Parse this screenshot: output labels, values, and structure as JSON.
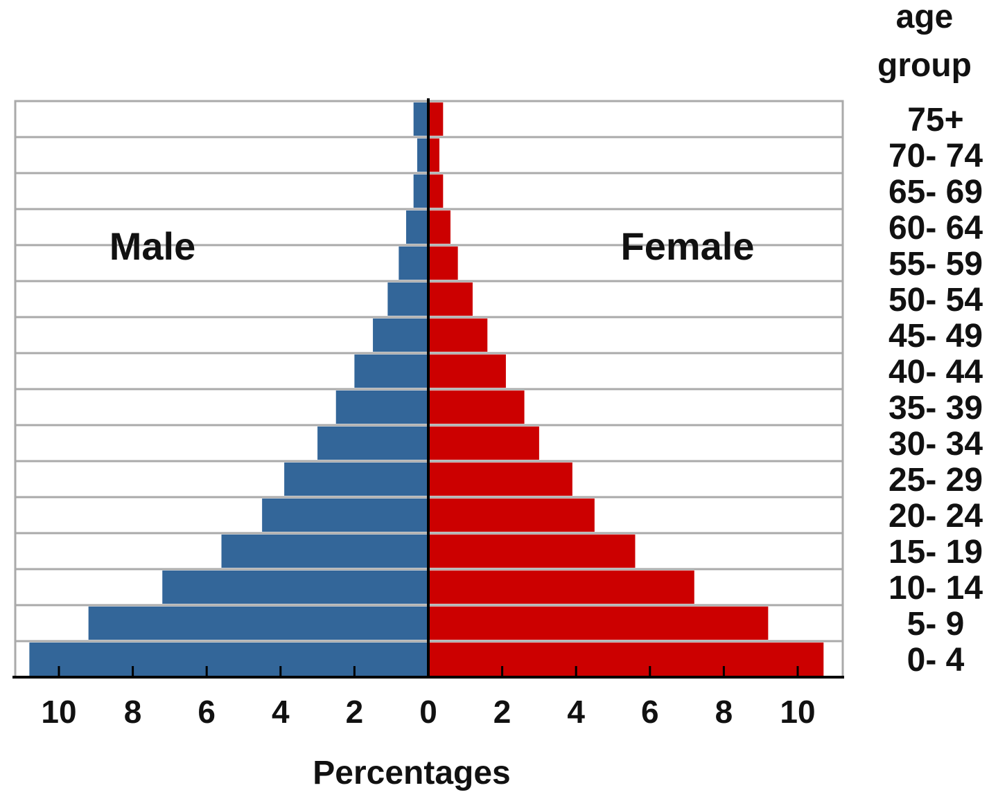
{
  "chart_data": {
    "type": "bar",
    "orientation": "horizontal",
    "variant": "population-pyramid",
    "xlabel": "Percentages",
    "age_title_lines": [
      "age",
      "group"
    ],
    "categories": [
      "75+",
      "70- 74",
      "65- 69",
      "60- 64",
      "55- 59",
      "50- 54",
      "45- 49",
      "40- 44",
      "35- 39",
      "30- 34",
      "25- 29",
      "20- 24",
      "15- 19",
      "10- 14",
      "5- 9",
      "0- 4"
    ],
    "series": [
      {
        "name": "Male",
        "color": "#336699",
        "values": [
          0.4,
          0.3,
          0.4,
          0.6,
          0.8,
          1.1,
          1.5,
          2.0,
          2.5,
          3.0,
          3.9,
          4.5,
          5.6,
          7.2,
          9.2,
          10.8
        ]
      },
      {
        "name": "Female",
        "color": "#cc0000",
        "values": [
          0.4,
          0.3,
          0.4,
          0.6,
          0.8,
          1.2,
          1.6,
          2.1,
          2.6,
          3.0,
          3.9,
          4.5,
          5.6,
          7.2,
          9.2,
          10.7
        ]
      }
    ],
    "xticks": [
      10,
      8,
      6,
      4,
      2,
      0,
      2,
      4,
      6,
      8,
      10
    ],
    "xlim": [
      -11.2,
      11.2
    ],
    "grid": "horizontal"
  }
}
